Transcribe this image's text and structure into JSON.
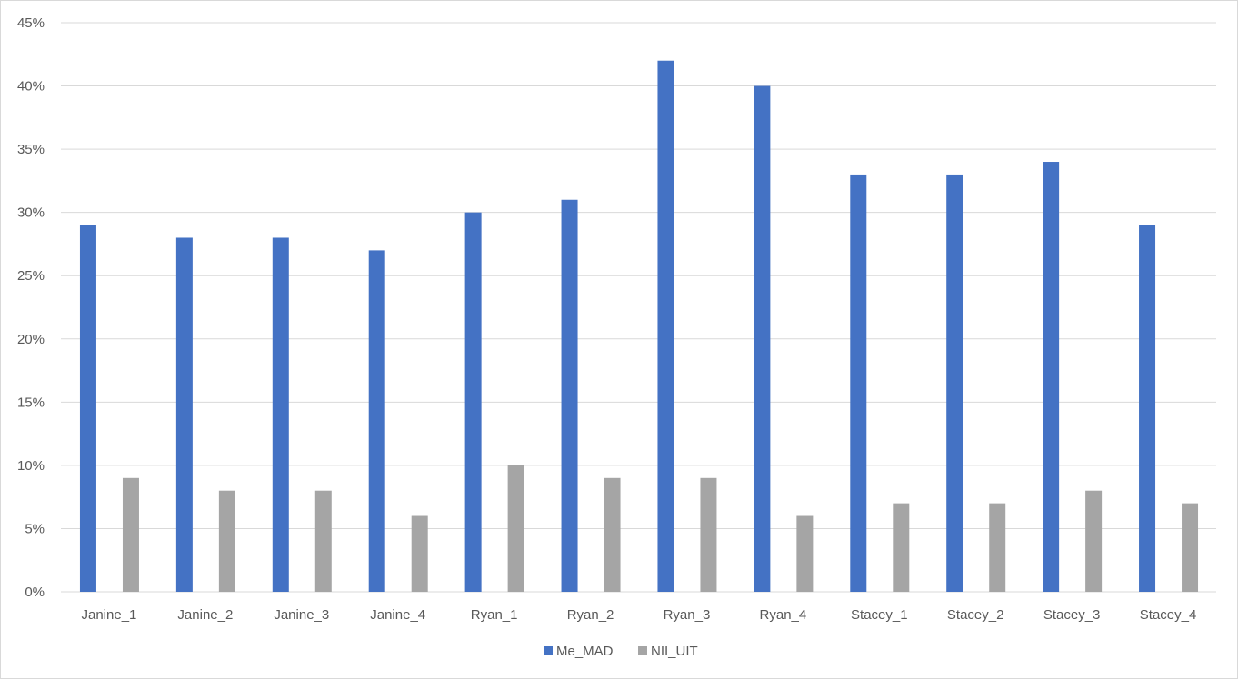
{
  "chart_data": {
    "type": "bar",
    "title": "",
    "xlabel": "",
    "ylabel": "",
    "categories": [
      "Janine_1",
      "Janine_2",
      "Janine_3",
      "Janine_4",
      "Ryan_1",
      "Ryan_2",
      "Ryan_3",
      "Ryan_4",
      "Stacey_1",
      "Stacey_2",
      "Stacey_3",
      "Stacey_4"
    ],
    "series": [
      {
        "name": "Me_MAD",
        "color": "#4472c4",
        "values": [
          29,
          28,
          28,
          27,
          30,
          31,
          42,
          40,
          33,
          33,
          34,
          29
        ]
      },
      {
        "name": "NII_UIT",
        "color": "#a5a5a5",
        "values": [
          9,
          8,
          8,
          6,
          10,
          9,
          9,
          6,
          7,
          7,
          8,
          7
        ]
      }
    ],
    "ylim": [
      0,
      45
    ],
    "yticks": [
      "0%",
      "5%",
      "10%",
      "15%",
      "20%",
      "25%",
      "30%",
      "35%",
      "40%",
      "45%"
    ],
    "grid": true,
    "legend": "bottom"
  }
}
